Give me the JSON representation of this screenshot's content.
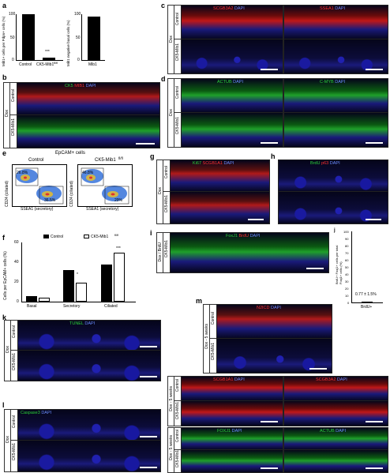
{
  "panels": {
    "a": "a",
    "b": "b",
    "c": "c",
    "d": "d",
    "e": "e",
    "f": "f",
    "g": "g",
    "h": "h",
    "i": "i",
    "j": "j",
    "k": "k",
    "l": "l",
    "m": "m"
  },
  "common": {
    "dox": "Dox",
    "control": "Control",
    "ck5": "CK5-Mib1",
    "ck5_sup": "fl/fl",
    "dapi": "DAPI",
    "dox_5wk": "Dox - 5 weeks",
    "dox_brdu": "Dox / BrdU"
  },
  "panel_a": {
    "ylabel_left": "Mib1+ cells per Pdpn+ cells (%)",
    "ylabel_right": "Mib1 negative basal cells (%)",
    "chart_left": {
      "type": "bar",
      "categories": [
        "Control",
        "CK5-Mib1 fl/fl"
      ],
      "values": [
        100,
        5
      ],
      "ylim": [
        0,
        100
      ],
      "yticks": [
        "0",
        "50",
        "100"
      ],
      "significance": "***"
    },
    "chart_right": {
      "type": "bar",
      "categories": [
        "Mib1"
      ],
      "values": [
        95
      ],
      "ylim": [
        0,
        100
      ],
      "yticks": [
        "0",
        "50",
        "100"
      ]
    }
  },
  "panel_b": {
    "stain1": "CK5",
    "stain2": "MIB1",
    "stain3": "DAPI"
  },
  "panel_c": {
    "left_stain": "SCGB3A2",
    "right_stain": "SSEA1"
  },
  "panel_d": {
    "left_stain": "ACTUB",
    "right_stain": "C-MYB"
  },
  "panel_e": {
    "title": "EpCAM+ cells",
    "control": "Control",
    "ck5": "CK5-Mib1",
    "ylabel": "CD24 (ciliated)",
    "xlabel": "SSEA1 (secretory)",
    "control_ciliated": "26.8%",
    "control_secretory": "36.5%",
    "ck5_ciliated": "46.8%",
    "ck5_secretory": "29%"
  },
  "panel_f": {
    "legend_control": "Control",
    "legend_ck5": "CK5-Mib1",
    "ylabel": "Cells per EpCAM+ cells (%)",
    "chart_data": {
      "type": "bar",
      "categories": [
        "Basal",
        "Secretory",
        "Ciliated"
      ],
      "series": [
        {
          "name": "Control",
          "values": [
            6,
            32,
            38
          ]
        },
        {
          "name": "CK5-Mib1 fl/fl",
          "values": [
            4,
            19,
            50
          ]
        }
      ],
      "ylim": [
        0,
        60
      ],
      "yticks": [
        "0",
        "20",
        "40",
        "60"
      ],
      "significance": [
        "",
        "*",
        "***"
      ]
    }
  },
  "panel_g": {
    "left_stain": "Ki67",
    "left_stain2": "SCGB1A1",
    "right_stain": "BrdU",
    "right_stain2": "p63"
  },
  "panel_i": {
    "stain1": "FoxJ1",
    "stain2": "BrdU"
  },
  "panel_j": {
    "ylabel": "BrdU+ Foxj1+ cells per total Foxj1+ cells (%)",
    "value_label": "0.77 ± 1.5%",
    "xlabel": "BrdU+",
    "chart_data": {
      "type": "bar",
      "categories": [
        "BrdU+"
      ],
      "values": [
        0.77
      ],
      "ylim": [
        0,
        100
      ],
      "yticks": [
        "0",
        "10",
        "20",
        "30",
        "40",
        "50",
        "60",
        "70",
        "80",
        "90",
        "100"
      ]
    }
  },
  "panel_k": {
    "stain": "TUNEL"
  },
  "panel_l": {
    "stain": "Caspase3"
  },
  "panel_m": {
    "top_stain": "N2ICD",
    "mid_left_stain": "SCGB1A1",
    "mid_right_stain": "SCGB3A2",
    "bot_left_stain": "FOXJ1",
    "bot_right_stain": "ACTUB"
  }
}
